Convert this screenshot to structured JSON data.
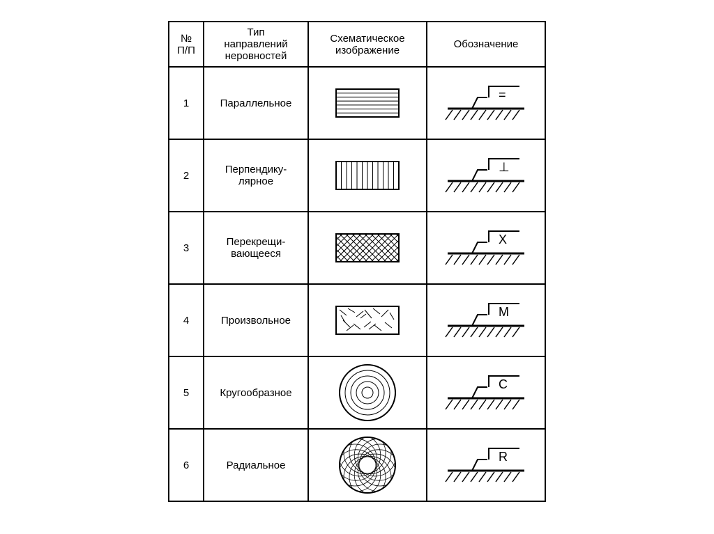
{
  "table": {
    "headers": {
      "num": "№\nП/П",
      "type": "Тип\nнаправлений\nнеровностей",
      "schematic": "Схематическое\nизображение",
      "symbol": "Обозначение"
    },
    "rows": [
      {
        "num": "1",
        "type": "Параллельное",
        "schematic": "parallel",
        "symbol": "="
      },
      {
        "num": "2",
        "type": "Перпендику-\nлярное",
        "schematic": "perpendicular",
        "symbol": "⊥"
      },
      {
        "num": "3",
        "type": "Перекрещи-\nвающееся",
        "schematic": "cross",
        "symbol": "X"
      },
      {
        "num": "4",
        "type": "Произвольное",
        "schematic": "random",
        "symbol": "M"
      },
      {
        "num": "5",
        "type": "Кругообразное",
        "schematic": "concentric",
        "symbol": "C"
      },
      {
        "num": "6",
        "type": "Радиальное",
        "schematic": "radial",
        "symbol": "R"
      }
    ],
    "style": {
      "stroke": "#000000",
      "fill": "#ffffff",
      "header_fontsize": 15,
      "body_fontsize": 15,
      "symbol_fontsize": 18,
      "rect_w": 90,
      "rect_h": 40,
      "circle_r": 40,
      "line_thin": 1,
      "line_thick": 2
    }
  }
}
